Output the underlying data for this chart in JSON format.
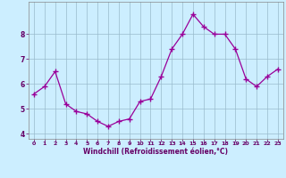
{
  "x": [
    0,
    1,
    2,
    3,
    4,
    5,
    6,
    7,
    8,
    9,
    10,
    11,
    12,
    13,
    14,
    15,
    16,
    17,
    18,
    19,
    20,
    21,
    22,
    23
  ],
  "y": [
    5.6,
    5.9,
    6.5,
    5.2,
    4.9,
    4.8,
    4.5,
    4.3,
    4.5,
    4.6,
    5.3,
    5.4,
    6.3,
    7.4,
    8.0,
    8.8,
    8.3,
    8.0,
    8.0,
    7.4,
    6.2,
    5.9,
    6.3,
    6.6
  ],
  "line_color": "#990099",
  "marker": "+",
  "marker_size": 4,
  "background_color": "#cceeff",
  "grid_color": "#99bbcc",
  "xlabel": "Windchill (Refroidissement éolien,°C)",
  "xlabel_color": "#660066",
  "tick_color": "#660066",
  "ylim": [
    3.8,
    9.3
  ],
  "xlim": [
    -0.5,
    23.5
  ],
  "yticks": [
    4,
    5,
    6,
    7,
    8
  ],
  "xticks": [
    0,
    1,
    2,
    3,
    4,
    5,
    6,
    7,
    8,
    9,
    10,
    11,
    12,
    13,
    14,
    15,
    16,
    17,
    18,
    19,
    20,
    21,
    22,
    23
  ]
}
